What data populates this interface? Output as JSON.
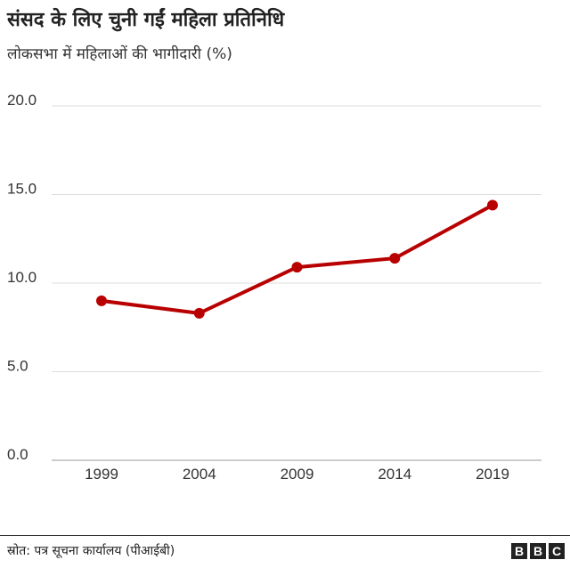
{
  "chart_data": {
    "type": "line",
    "title": "संसद के लिए चुनी गईं महिला प्रतिनिधि",
    "subtitle": "लोकसभा में महिलाओं की भागीदारी (%)",
    "x": [
      "1999",
      "2004",
      "2009",
      "2014",
      "2019"
    ],
    "series": [
      {
        "values": [
          9.0,
          8.3,
          10.9,
          11.4,
          14.4
        ]
      }
    ],
    "ylim": [
      0,
      20
    ],
    "yticks": [
      "0.0",
      "5.0",
      "10.0",
      "15.0",
      "20.0"
    ],
    "ytick_values": [
      0,
      5,
      10,
      15,
      20
    ],
    "grid": true,
    "line_color": "#b80000"
  },
  "footer": {
    "source": "स्रोत: पत्र सूचना कार्यालय (पीआईबी)",
    "logo_letters": [
      "B",
      "B",
      "C"
    ]
  }
}
